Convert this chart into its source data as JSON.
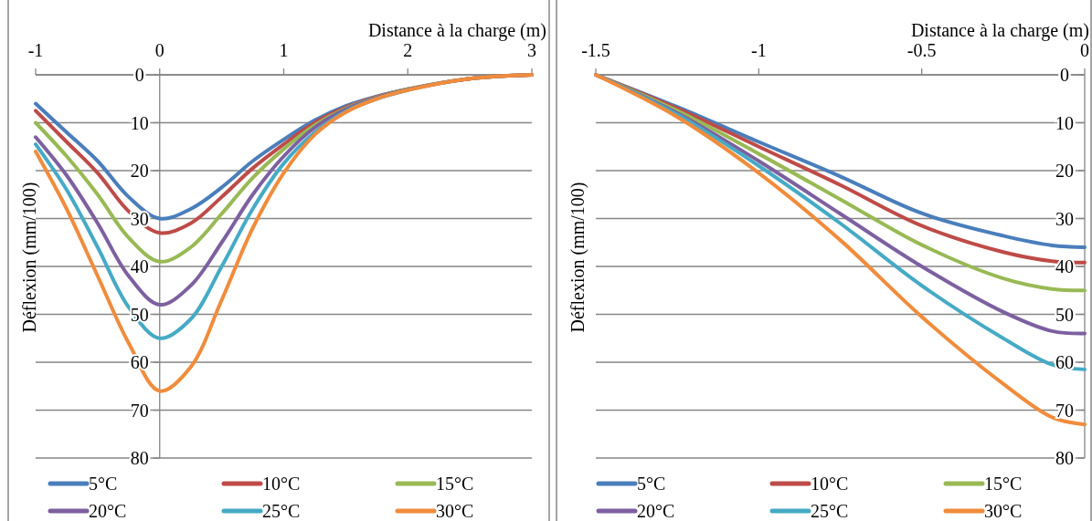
{
  "chart_data": [
    {
      "type": "line",
      "xlabel": "Distance à la charge (m)",
      "ylabel": "Déflexion (mm/100)",
      "x": [
        -1,
        -0.75,
        -0.5,
        -0.25,
        0,
        0.25,
        0.5,
        0.75,
        1,
        1.25,
        1.5,
        1.75,
        2,
        2.5,
        3
      ],
      "xlim": [
        -1,
        3
      ],
      "xticks": [
        -1,
        0,
        1,
        2,
        3
      ],
      "ylim": [
        80,
        0
      ],
      "yticks": [
        0,
        10,
        20,
        30,
        40,
        50,
        60,
        70,
        80
      ],
      "grid": "y",
      "legend": "bottom",
      "series": [
        {
          "name": "5°C",
          "color": "#4a7ebb",
          "values": [
            6,
            12,
            18,
            25.5,
            30,
            28,
            23.5,
            18,
            13.5,
            9.5,
            6.5,
            4.5,
            3,
            null,
            null
          ]
        },
        {
          "name": "10°C",
          "color": "#be4b48",
          "values": [
            7.5,
            14,
            20.5,
            28.5,
            33,
            31,
            25.5,
            19.5,
            14.5,
            10,
            6.8,
            4.6,
            3,
            0.8,
            0
          ]
        },
        {
          "name": "15°C",
          "color": "#98b954",
          "values": [
            10,
            17,
            25,
            34,
            39,
            36,
            29,
            21.5,
            15.5,
            10.5,
            7,
            4.7,
            3,
            0.8,
            0
          ]
        },
        {
          "name": "20°C",
          "color": "#7d60a0",
          "values": [
            13,
            21,
            31,
            42,
            48,
            44,
            35,
            25,
            17,
            11,
            7.2,
            4.8,
            3.1,
            0.8,
            0
          ]
        },
        {
          "name": "25°C",
          "color": "#46aac5",
          "values": [
            14.5,
            24,
            36,
            48.5,
            55,
            51,
            40,
            28,
            18.5,
            12,
            7.6,
            5,
            3.2,
            null,
            null
          ]
        },
        {
          "name": "30°C",
          "color": "#f08c3c",
          "values": [
            16,
            28,
            42,
            56,
            66,
            61,
            47,
            32,
            20.5,
            12.5,
            7.8,
            5,
            3.2,
            0.8,
            0
          ]
        }
      ]
    },
    {
      "type": "line",
      "xlabel": "Distance à la charge (m)",
      "ylabel": "Déflexion (mm/100)",
      "x": [
        -1.5,
        -1.25,
        -1,
        -0.75,
        -0.5,
        -0.25,
        -0.1,
        0
      ],
      "xlim": [
        -1.5,
        0
      ],
      "xticks": [
        -1.5,
        -1,
        -0.5,
        0
      ],
      "ylim": [
        80,
        0
      ],
      "yticks": [
        0,
        10,
        20,
        30,
        40,
        50,
        60,
        70,
        80
      ],
      "grid": "y",
      "legend": "bottom",
      "series": [
        {
          "name": "5°C",
          "color": "#4a7ebb",
          "values": [
            0,
            6.7,
            14,
            21.2,
            28.9,
            33.6,
            35.6,
            36
          ]
        },
        {
          "name": "10°C",
          "color": "#be4b48",
          "values": [
            0,
            7,
            15,
            23,
            31.5,
            37,
            38.9,
            39.2
          ]
        },
        {
          "name": "15°C",
          "color": "#98b954",
          "values": [
            0,
            7.5,
            16.5,
            26,
            35.5,
            42.5,
            44.7,
            45
          ]
        },
        {
          "name": "20°C",
          "color": "#7d60a0",
          "values": [
            0,
            8,
            18,
            29,
            40,
            49.5,
            53.5,
            54
          ]
        },
        {
          "name": "25°C",
          "color": "#46aac5",
          "values": [
            0,
            8.3,
            19,
            31,
            44,
            55,
            60.5,
            61.5
          ]
        },
        {
          "name": "30°C",
          "color": "#f08c3c",
          "values": [
            0,
            8.8,
            20.5,
            34.5,
            50.5,
            64.5,
            71.5,
            73
          ]
        }
      ]
    }
  ]
}
